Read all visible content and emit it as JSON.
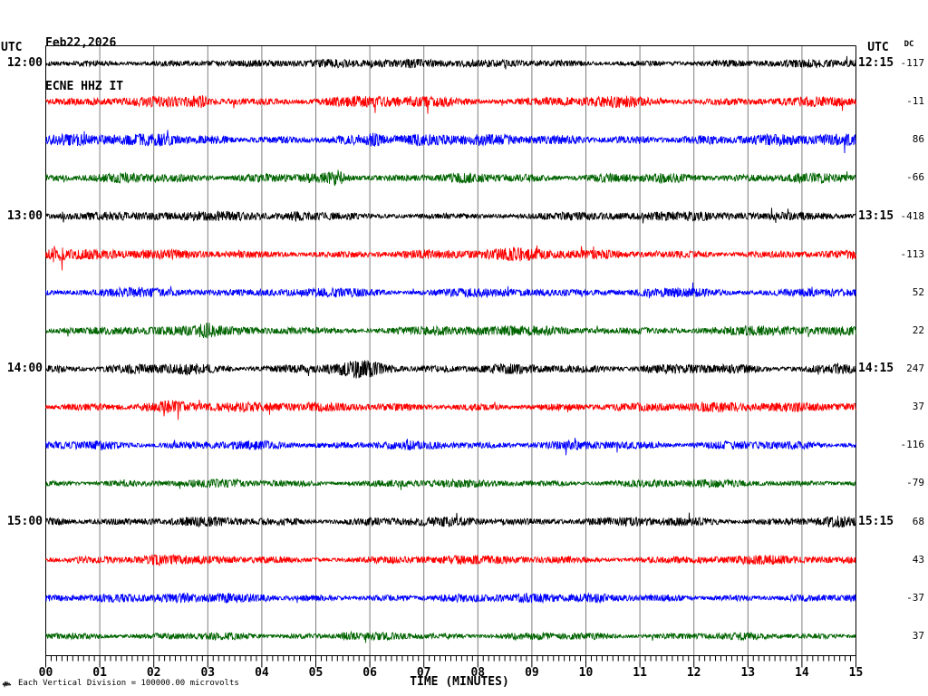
{
  "header": {
    "date": "Feb22,2026",
    "station": "ECNE HHZ IT"
  },
  "left_axis": {
    "header": "UTC",
    "times": [
      "12:00",
      "13:00",
      "14:00",
      "15:00"
    ]
  },
  "right_axis": {
    "header": "UTC",
    "dc_header": "DC",
    "times": [
      "12:15",
      "13:15",
      "14:15",
      "15:15"
    ]
  },
  "footer": {
    "scale_note": "Each Vertical Division = 100000.00 microvolts"
  },
  "chart_data": {
    "type": "line",
    "title": "ECNE HHZ IT",
    "subtitle": "Feb22,2026",
    "xlabel": "TIME (MINUTES)",
    "x_ticks": [
      "00",
      "01",
      "02",
      "03",
      "04",
      "05",
      "06",
      "07",
      "08",
      "09",
      "10",
      "11",
      "12",
      "13",
      "14",
      "15"
    ],
    "x_range_minutes": [
      0,
      15
    ],
    "minutes_per_line": 15,
    "grid": "vertical-gridline-per-minute",
    "grid_color": "#7f7f7f",
    "colors_cycle": [
      "#000000",
      "#ff0000",
      "#0000ff",
      "#006400"
    ],
    "vertical_division_microvolts": "100000.00",
    "traces": [
      {
        "row": 0,
        "color": "#000000",
        "dc": -117,
        "left_label": "12:00",
        "right_label": "12:15",
        "seed": 101,
        "amp": 0.85,
        "bursts": [
          {
            "t": 3.1,
            "w": 0.25,
            "g": 1.4
          },
          {
            "t": 9.0,
            "w": 0.4,
            "g": 1.25
          }
        ]
      },
      {
        "row": 1,
        "color": "#ff0000",
        "dc": -11,
        "left_label": "",
        "right_label": "",
        "seed": 102,
        "amp": 1.0,
        "bursts": [
          {
            "t": 2.85,
            "w": 0.15,
            "g": 2.1
          },
          {
            "t": 6.9,
            "w": 0.9,
            "g": 1.35
          },
          {
            "t": 10.4,
            "w": 0.5,
            "g": 1.25
          }
        ]
      },
      {
        "row": 2,
        "color": "#0000ff",
        "dc": 86,
        "left_label": "",
        "right_label": "",
        "seed": 103,
        "amp": 1.15,
        "bursts": [
          {
            "t": 2.2,
            "w": 0.2,
            "g": 1.7
          },
          {
            "t": 6.1,
            "w": 0.12,
            "g": 2.0
          }
        ]
      },
      {
        "row": 3,
        "color": "#006400",
        "dc": -66,
        "left_label": "",
        "right_label": "",
        "seed": 104,
        "amp": 1.0,
        "bursts": [
          {
            "t": 5.4,
            "w": 0.12,
            "g": 1.9
          }
        ]
      },
      {
        "row": 4,
        "color": "#000000",
        "dc": -418,
        "left_label": "13:00",
        "right_label": "13:15",
        "seed": 105,
        "amp": 0.9,
        "bursts": [
          {
            "t": 4.6,
            "w": 0.3,
            "g": 1.5
          }
        ]
      },
      {
        "row": 5,
        "color": "#ff0000",
        "dc": -113,
        "left_label": "",
        "right_label": "",
        "seed": 106,
        "amp": 1.0,
        "bursts": [
          {
            "t": 0.2,
            "w": 0.12,
            "g": 2.3
          },
          {
            "t": 8.8,
            "w": 0.5,
            "g": 1.3
          }
        ]
      },
      {
        "row": 6,
        "color": "#0000ff",
        "dc": 52,
        "left_label": "",
        "right_label": "",
        "seed": 107,
        "amp": 0.95,
        "bursts": []
      },
      {
        "row": 7,
        "color": "#006400",
        "dc": 22,
        "left_label": "",
        "right_label": "",
        "seed": 108,
        "amp": 1.0,
        "bursts": [
          {
            "t": 3.0,
            "w": 0.15,
            "g": 1.6
          }
        ]
      },
      {
        "row": 8,
        "color": "#000000",
        "dc": 247,
        "left_label": "14:00",
        "right_label": "14:15",
        "seed": 109,
        "amp": 1.0,
        "bursts": [
          {
            "t": 2.6,
            "w": 0.3,
            "g": 1.35
          },
          {
            "t": 5.9,
            "w": 0.5,
            "g": 1.9
          },
          {
            "t": 14.7,
            "w": 0.2,
            "g": 1.5
          }
        ]
      },
      {
        "row": 9,
        "color": "#ff0000",
        "dc": 37,
        "left_label": "",
        "right_label": "",
        "seed": 110,
        "amp": 0.95,
        "bursts": [
          {
            "t": 2.4,
            "w": 0.3,
            "g": 1.5
          }
        ]
      },
      {
        "row": 10,
        "color": "#0000ff",
        "dc": -116,
        "left_label": "",
        "right_label": "",
        "seed": 111,
        "amp": 0.9,
        "bursts": []
      },
      {
        "row": 11,
        "color": "#006400",
        "dc": -79,
        "left_label": "",
        "right_label": "",
        "seed": 112,
        "amp": 0.8,
        "bursts": []
      },
      {
        "row": 12,
        "color": "#000000",
        "dc": 68,
        "left_label": "15:00",
        "right_label": "15:15",
        "seed": 113,
        "amp": 0.95,
        "bursts": [
          {
            "t": 14.6,
            "w": 0.25,
            "g": 1.5
          }
        ]
      },
      {
        "row": 13,
        "color": "#ff0000",
        "dc": 43,
        "left_label": "",
        "right_label": "",
        "seed": 114,
        "amp": 0.9,
        "bursts": [
          {
            "t": 2.0,
            "w": 0.2,
            "g": 1.5
          }
        ]
      },
      {
        "row": 14,
        "color": "#0000ff",
        "dc": -37,
        "left_label": "",
        "right_label": "",
        "seed": 115,
        "amp": 0.9,
        "bursts": [
          {
            "t": 3.3,
            "w": 0.2,
            "g": 1.5
          }
        ]
      },
      {
        "row": 15,
        "color": "#006400",
        "dc": 37,
        "left_label": "",
        "right_label": "",
        "seed": 116,
        "amp": 0.75,
        "bursts": [
          {
            "t": 5.6,
            "w": 0.15,
            "g": 1.7
          }
        ]
      }
    ]
  }
}
